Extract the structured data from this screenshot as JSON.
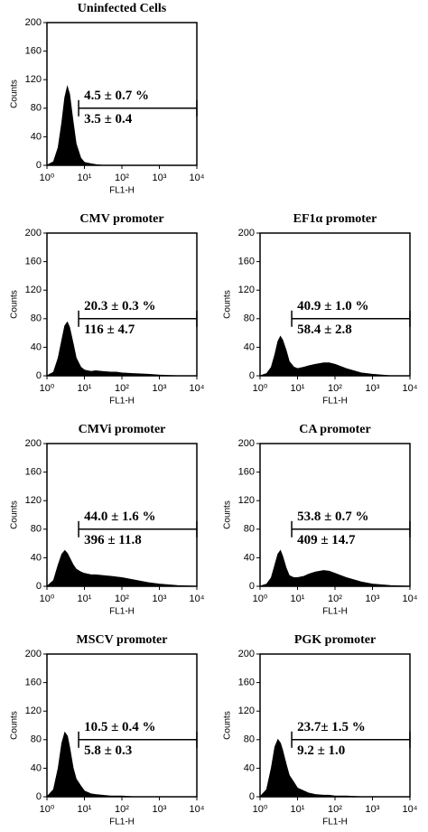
{
  "chart_data": [
    {
      "type": "area",
      "title": "Uninfected Cells",
      "xlabel": "FL1-H",
      "ylabel": "Counts",
      "color": "#000000",
      "xscale": "log",
      "x": [
        1,
        1.5,
        2,
        2.5,
        3,
        3.5,
        4,
        5,
        6,
        8,
        10,
        15,
        20,
        30,
        50,
        70,
        100,
        200,
        500,
        1000,
        3000,
        10000
      ],
      "values": [
        0,
        5,
        25,
        60,
        95,
        110,
        100,
        60,
        30,
        10,
        4,
        2,
        1,
        0,
        0,
        0,
        0,
        0,
        0,
        0,
        0,
        0
      ],
      "xlim": [
        1,
        10000
      ],
      "xticks": [
        {
          "value": 1,
          "label": "10⁰"
        },
        {
          "value": 10,
          "label": "10¹"
        },
        {
          "value": 100,
          "label": "10²"
        },
        {
          "value": 1000,
          "label": "10³"
        },
        {
          "value": 10000,
          "label": "10⁴"
        }
      ],
      "ylim": [
        0,
        200
      ],
      "yticks": [
        0,
        40,
        80,
        120,
        160,
        200
      ],
      "gate": [
        7,
        10000
      ],
      "annotations": [
        "4.5 ± 0.7 %",
        "3.5 ± 0.4"
      ]
    },
    {
      "type": "area",
      "title": "CMV promoter",
      "xlabel": "FL1-H",
      "ylabel": "Counts",
      "color": "#000000",
      "xscale": "log",
      "x": [
        1,
        1.5,
        2,
        2.5,
        3,
        3.5,
        4,
        5,
        6,
        8,
        10,
        15,
        20,
        30,
        50,
        70,
        100,
        200,
        500,
        1000,
        3000,
        10000
      ],
      "values": [
        0,
        5,
        25,
        50,
        70,
        75,
        68,
        45,
        25,
        12,
        8,
        6,
        7,
        6,
        5,
        5,
        4,
        3,
        2,
        1,
        0,
        0
      ],
      "xlim": [
        1,
        10000
      ],
      "xticks": [
        {
          "value": 1,
          "label": "10⁰"
        },
        {
          "value": 10,
          "label": "10¹"
        },
        {
          "value": 100,
          "label": "10²"
        },
        {
          "value": 1000,
          "label": "10³"
        },
        {
          "value": 10000,
          "label": "10⁴"
        }
      ],
      "ylim": [
        0,
        200
      ],
      "yticks": [
        0,
        40,
        80,
        120,
        160,
        200
      ],
      "gate": [
        7,
        10000
      ],
      "annotations": [
        "20.3 ± 0.3 %",
        "116 ± 4.7"
      ]
    },
    {
      "type": "area",
      "title": "EF1α promoter",
      "xlabel": "FL1-H",
      "ylabel": "Counts",
      "color": "#000000",
      "xscale": "log",
      "x": [
        1,
        1.5,
        2,
        2.5,
        3,
        3.5,
        4,
        5,
        6,
        8,
        10,
        15,
        20,
        30,
        50,
        70,
        100,
        200,
        500,
        1000,
        3000,
        10000
      ],
      "values": [
        0,
        3,
        12,
        30,
        48,
        55,
        50,
        35,
        20,
        12,
        10,
        12,
        14,
        16,
        18,
        18,
        16,
        10,
        4,
        2,
        0,
        0
      ],
      "xlim": [
        1,
        10000
      ],
      "xticks": [
        {
          "value": 1,
          "label": "10⁰"
        },
        {
          "value": 10,
          "label": "10¹"
        },
        {
          "value": 100,
          "label": "10²"
        },
        {
          "value": 1000,
          "label": "10³"
        },
        {
          "value": 10000,
          "label": "10⁴"
        }
      ],
      "ylim": [
        0,
        200
      ],
      "yticks": [
        0,
        40,
        80,
        120,
        160,
        200
      ],
      "gate": [
        7,
        10000
      ],
      "annotations": [
        "40.9 ± 1.0 %",
        "58.4 ± 2.8"
      ]
    },
    {
      "type": "area",
      "title": "CMVi promoter",
      "xlabel": "FL1-H",
      "ylabel": "Counts",
      "color": "#000000",
      "xscale": "log",
      "x": [
        1,
        1.5,
        2,
        2.5,
        3,
        3.5,
        4,
        5,
        6,
        8,
        10,
        15,
        20,
        30,
        50,
        70,
        100,
        200,
        500,
        1000,
        3000,
        10000
      ],
      "values": [
        0,
        8,
        30,
        45,
        50,
        46,
        40,
        30,
        24,
        20,
        18,
        16,
        16,
        15,
        14,
        13,
        12,
        9,
        5,
        3,
        1,
        0
      ],
      "xlim": [
        1,
        10000
      ],
      "xticks": [
        {
          "value": 1,
          "label": "10⁰"
        },
        {
          "value": 10,
          "label": "10¹"
        },
        {
          "value": 100,
          "label": "10²"
        },
        {
          "value": 1000,
          "label": "10³"
        },
        {
          "value": 10000,
          "label": "10⁴"
        }
      ],
      "ylim": [
        0,
        200
      ],
      "yticks": [
        0,
        40,
        80,
        120,
        160,
        200
      ],
      "gate": [
        7,
        10000
      ],
      "annotations": [
        "44.0 ± 1.6 %",
        "396 ± 11.8"
      ]
    },
    {
      "type": "area",
      "title": "CA promoter",
      "xlabel": "FL1-H",
      "ylabel": "Counts",
      "color": "#000000",
      "xscale": "log",
      "x": [
        1,
        1.5,
        2,
        2.5,
        3,
        3.5,
        4,
        5,
        6,
        8,
        10,
        15,
        20,
        30,
        50,
        70,
        100,
        200,
        500,
        1000,
        3000,
        10000
      ],
      "values": [
        0,
        3,
        12,
        30,
        45,
        50,
        42,
        25,
        15,
        12,
        12,
        14,
        17,
        20,
        22,
        21,
        18,
        12,
        6,
        3,
        1,
        0
      ],
      "xlim": [
        1,
        10000
      ],
      "xticks": [
        {
          "value": 1,
          "label": "10⁰"
        },
        {
          "value": 10,
          "label": "10¹"
        },
        {
          "value": 100,
          "label": "10²"
        },
        {
          "value": 1000,
          "label": "10³"
        },
        {
          "value": 10000,
          "label": "10⁴"
        }
      ],
      "ylim": [
        0,
        200
      ],
      "yticks": [
        0,
        40,
        80,
        120,
        160,
        200
      ],
      "gate": [
        7,
        10000
      ],
      "annotations": [
        "53.8 ± 0.7 %",
        "409 ± 14.7"
      ]
    },
    {
      "type": "area",
      "title": "MSCV promoter",
      "xlabel": "FL1-H",
      "ylabel": "Counts",
      "color": "#000000",
      "xscale": "log",
      "x": [
        1,
        1.5,
        2,
        2.5,
        3,
        3.5,
        4,
        5,
        6,
        8,
        10,
        15,
        20,
        30,
        50,
        70,
        100,
        200,
        500,
        1000,
        3000,
        10000
      ],
      "values": [
        0,
        10,
        40,
        75,
        90,
        85,
        70,
        40,
        25,
        15,
        8,
        4,
        3,
        2,
        1,
        1,
        1,
        0,
        0,
        0,
        0,
        0
      ],
      "xlim": [
        1,
        10000
      ],
      "xticks": [
        {
          "value": 1,
          "label": "10⁰"
        },
        {
          "value": 10,
          "label": "10¹"
        },
        {
          "value": 100,
          "label": "10²"
        },
        {
          "value": 1000,
          "label": "10³"
        },
        {
          "value": 10000,
          "label": "10⁴"
        }
      ],
      "ylim": [
        0,
        200
      ],
      "yticks": [
        0,
        40,
        80,
        120,
        160,
        200
      ],
      "gate": [
        7,
        10000
      ],
      "annotations": [
        "10.5 ± 0.4 %",
        "5.8 ± 0.3"
      ]
    },
    {
      "type": "area",
      "title": "PGK promoter",
      "xlabel": "FL1-H",
      "ylabel": "Counts",
      "color": "#000000",
      "xscale": "log",
      "x": [
        1,
        1.5,
        2,
        2.5,
        3,
        3.5,
        4,
        5,
        6,
        8,
        10,
        15,
        20,
        30,
        50,
        70,
        100,
        200,
        500,
        1000,
        3000,
        10000
      ],
      "values": [
        0,
        10,
        40,
        70,
        80,
        75,
        65,
        45,
        30,
        20,
        12,
        8,
        5,
        3,
        2,
        2,
        1,
        1,
        0,
        0,
        0,
        0
      ],
      "xlim": [
        1,
        10000
      ],
      "xticks": [
        {
          "value": 1,
          "label": "10⁰"
        },
        {
          "value": 10,
          "label": "10¹"
        },
        {
          "value": 100,
          "label": "10²"
        },
        {
          "value": 1000,
          "label": "10³"
        },
        {
          "value": 10000,
          "label": "10⁴"
        }
      ],
      "ylim": [
        0,
        200
      ],
      "yticks": [
        0,
        40,
        80,
        120,
        160,
        200
      ],
      "gate": [
        7,
        10000
      ],
      "annotations": [
        "23.7± 1.5 %",
        "9.2 ± 1.0"
      ]
    }
  ]
}
